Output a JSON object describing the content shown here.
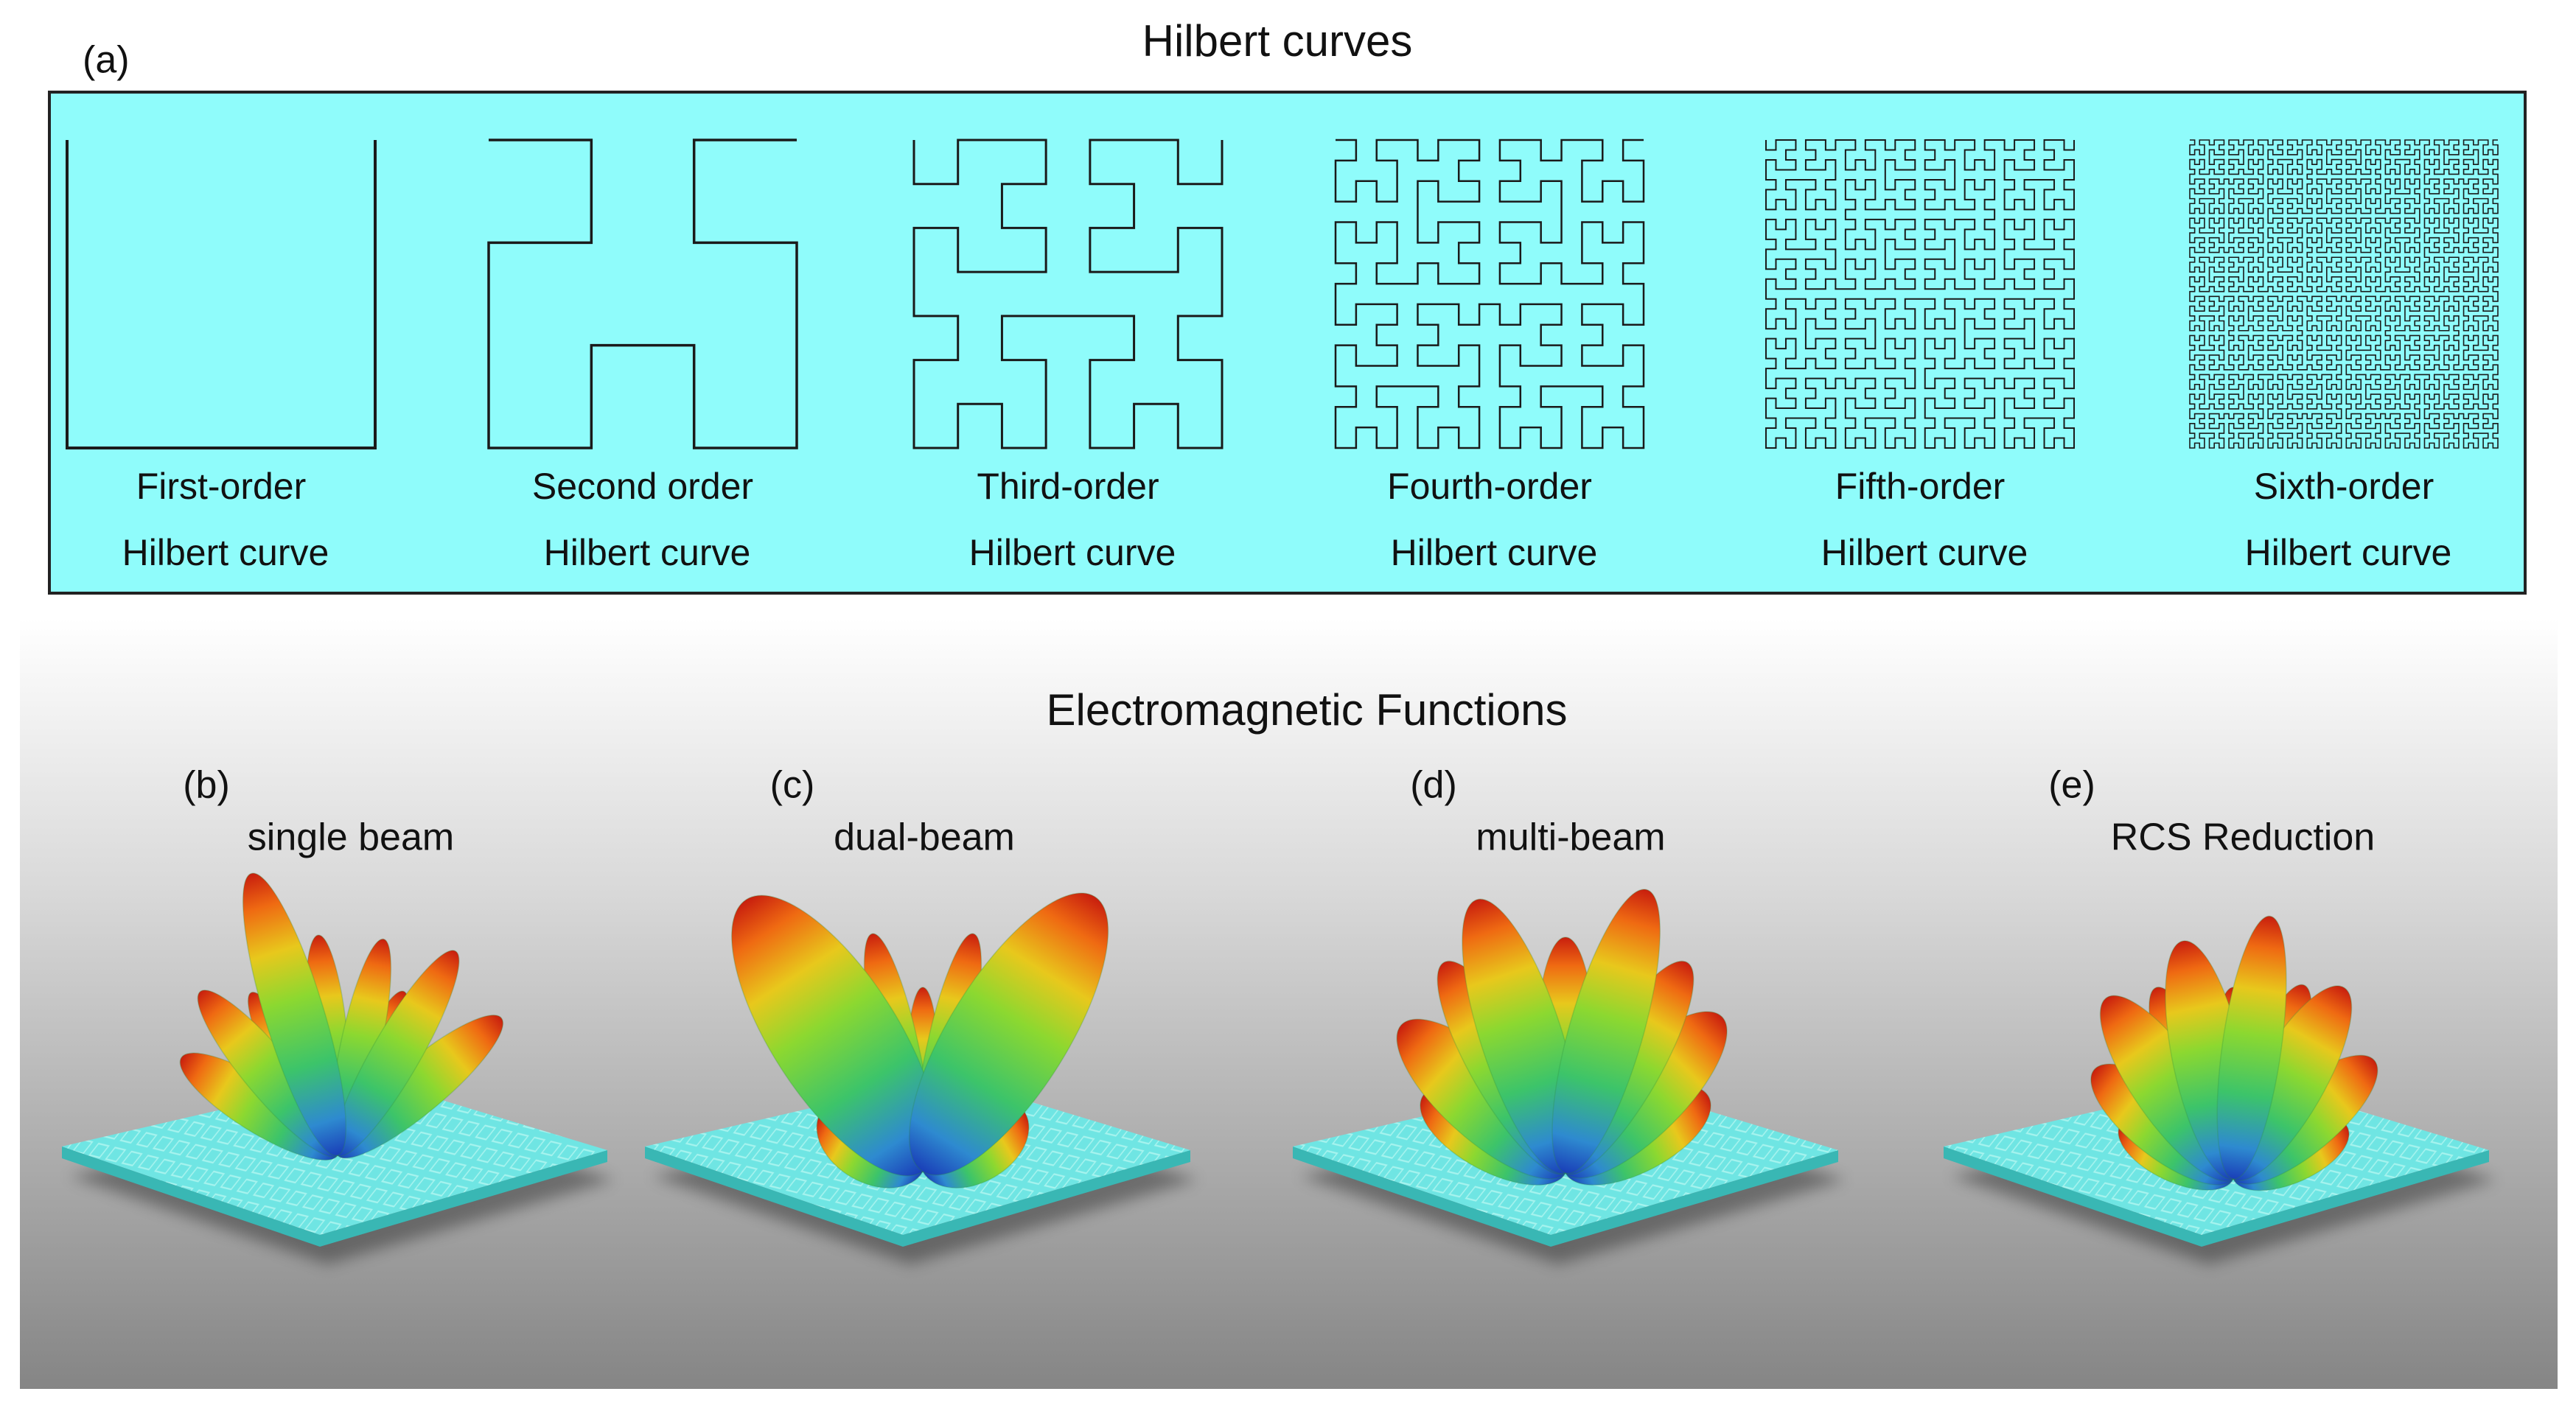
{
  "panel_a": {
    "label": "(a)",
    "title": "Hilbert curves",
    "curves": [
      {
        "line1": "First-order",
        "line2": "Hilbert curve"
      },
      {
        "line1": "Second order",
        "line2": "Hilbert curve"
      },
      {
        "line1": "Third-order",
        "line2": "Hilbert curve"
      },
      {
        "line1": "Fourth-order",
        "line2": "Hilbert curve"
      },
      {
        "line1": "Fifth-order",
        "line2": "Hilbert curve"
      },
      {
        "line1": "Sixth-order",
        "line2": "Hilbert curve"
      }
    ]
  },
  "panel_em": {
    "title": "Electromagnetic Functions",
    "panels": [
      {
        "label": "(b)",
        "caption": "single beam"
      },
      {
        "label": "(c)",
        "caption": "dual-beam"
      },
      {
        "label": "(d)",
        "caption": "multi-beam"
      },
      {
        "label": "(e)",
        "caption": "RCS Reduction"
      }
    ]
  }
}
